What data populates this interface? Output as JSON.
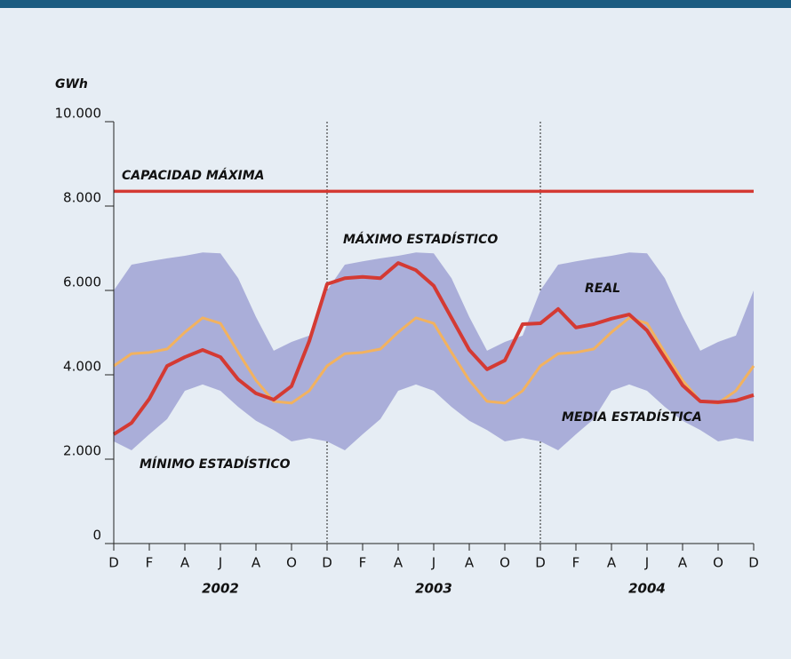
{
  "chart_data": {
    "type": "band-line",
    "y_label": "GWh",
    "categories": [
      "D",
      null,
      "F",
      null,
      "A",
      null,
      "J",
      null,
      "A",
      null,
      "O",
      null,
      "D",
      null,
      "F",
      null,
      "A",
      null,
      "J",
      null,
      "A",
      null,
      "O",
      null,
      "D",
      null,
      "F",
      null,
      "A",
      null,
      "J",
      null,
      "A",
      null,
      "O",
      null,
      "D"
    ],
    "year_labels": [
      "2002",
      "2003",
      "2004"
    ],
    "ylim": [
      0,
      10000
    ],
    "yticks": [
      0,
      {
        "value": 2000,
        "label": "2.000"
      },
      {
        "value": 4000,
        "label": "4.000"
      },
      {
        "value": 6000,
        "label": "6.000"
      },
      {
        "value": 8000,
        "label": "8.000"
      },
      {
        "value": 10000,
        "label": "10.000"
      }
    ],
    "capacity": {
      "name": "CAPACIDAD MÁXIMA",
      "value": 8350,
      "color": "#d43a33"
    },
    "band_color": "#aaaed9",
    "series": [
      {
        "name": "MÁXIMO ESTADÍSTICO",
        "role": "band-upper",
        "values": [
          6000,
          6610,
          6690,
          6760,
          6820,
          6900,
          6880,
          6290,
          5370,
          4570,
          4780,
          4930,
          6000,
          6610,
          6690,
          6760,
          6820,
          6900,
          6880,
          6290,
          5370,
          4570,
          4780,
          4930,
          6000,
          6610,
          6690,
          6760,
          6820,
          6900,
          6880,
          6290,
          5370,
          4570,
          4780,
          4930,
          6000
        ]
      },
      {
        "name": "MÍNIMO ESTADÍSTICO",
        "role": "band-lower",
        "values": [
          2420,
          2210,
          2590,
          2950,
          3620,
          3770,
          3620,
          3240,
          2910,
          2690,
          2420,
          2500,
          2420,
          2210,
          2590,
          2950,
          3620,
          3770,
          3620,
          3240,
          2910,
          2690,
          2420,
          2500,
          2420,
          2210,
          2590,
          2950,
          3620,
          3770,
          3620,
          3240,
          2910,
          2690,
          2420,
          2500,
          2420
        ]
      },
      {
        "name": "MEDIA ESTADÍSTICA",
        "role": "line",
        "color": "#f2b25f",
        "values": [
          4210,
          4500,
          4530,
          4610,
          5010,
          5350,
          5220,
          4530,
          3870,
          3370,
          3330,
          3620,
          4210,
          4500,
          4530,
          4610,
          5010,
          5350,
          5220,
          4530,
          3870,
          3370,
          3330,
          3620,
          4210,
          4500,
          4530,
          4610,
          5010,
          5350,
          5220,
          4530,
          3870,
          3370,
          3330,
          3620,
          4210
        ]
      },
      {
        "name": "REAL",
        "role": "line",
        "color": "#d43a33",
        "values": [
          2590,
          2860,
          3430,
          4210,
          4420,
          4590,
          4420,
          3890,
          3560,
          3410,
          3730,
          4800,
          6150,
          6290,
          6320,
          6290,
          6650,
          6480,
          6110,
          5350,
          4590,
          4130,
          4340,
          5200,
          5220,
          5560,
          5120,
          5200,
          5330,
          5430,
          5050,
          4400,
          3750,
          3370,
          3350,
          3390,
          3520
        ]
      }
    ]
  }
}
